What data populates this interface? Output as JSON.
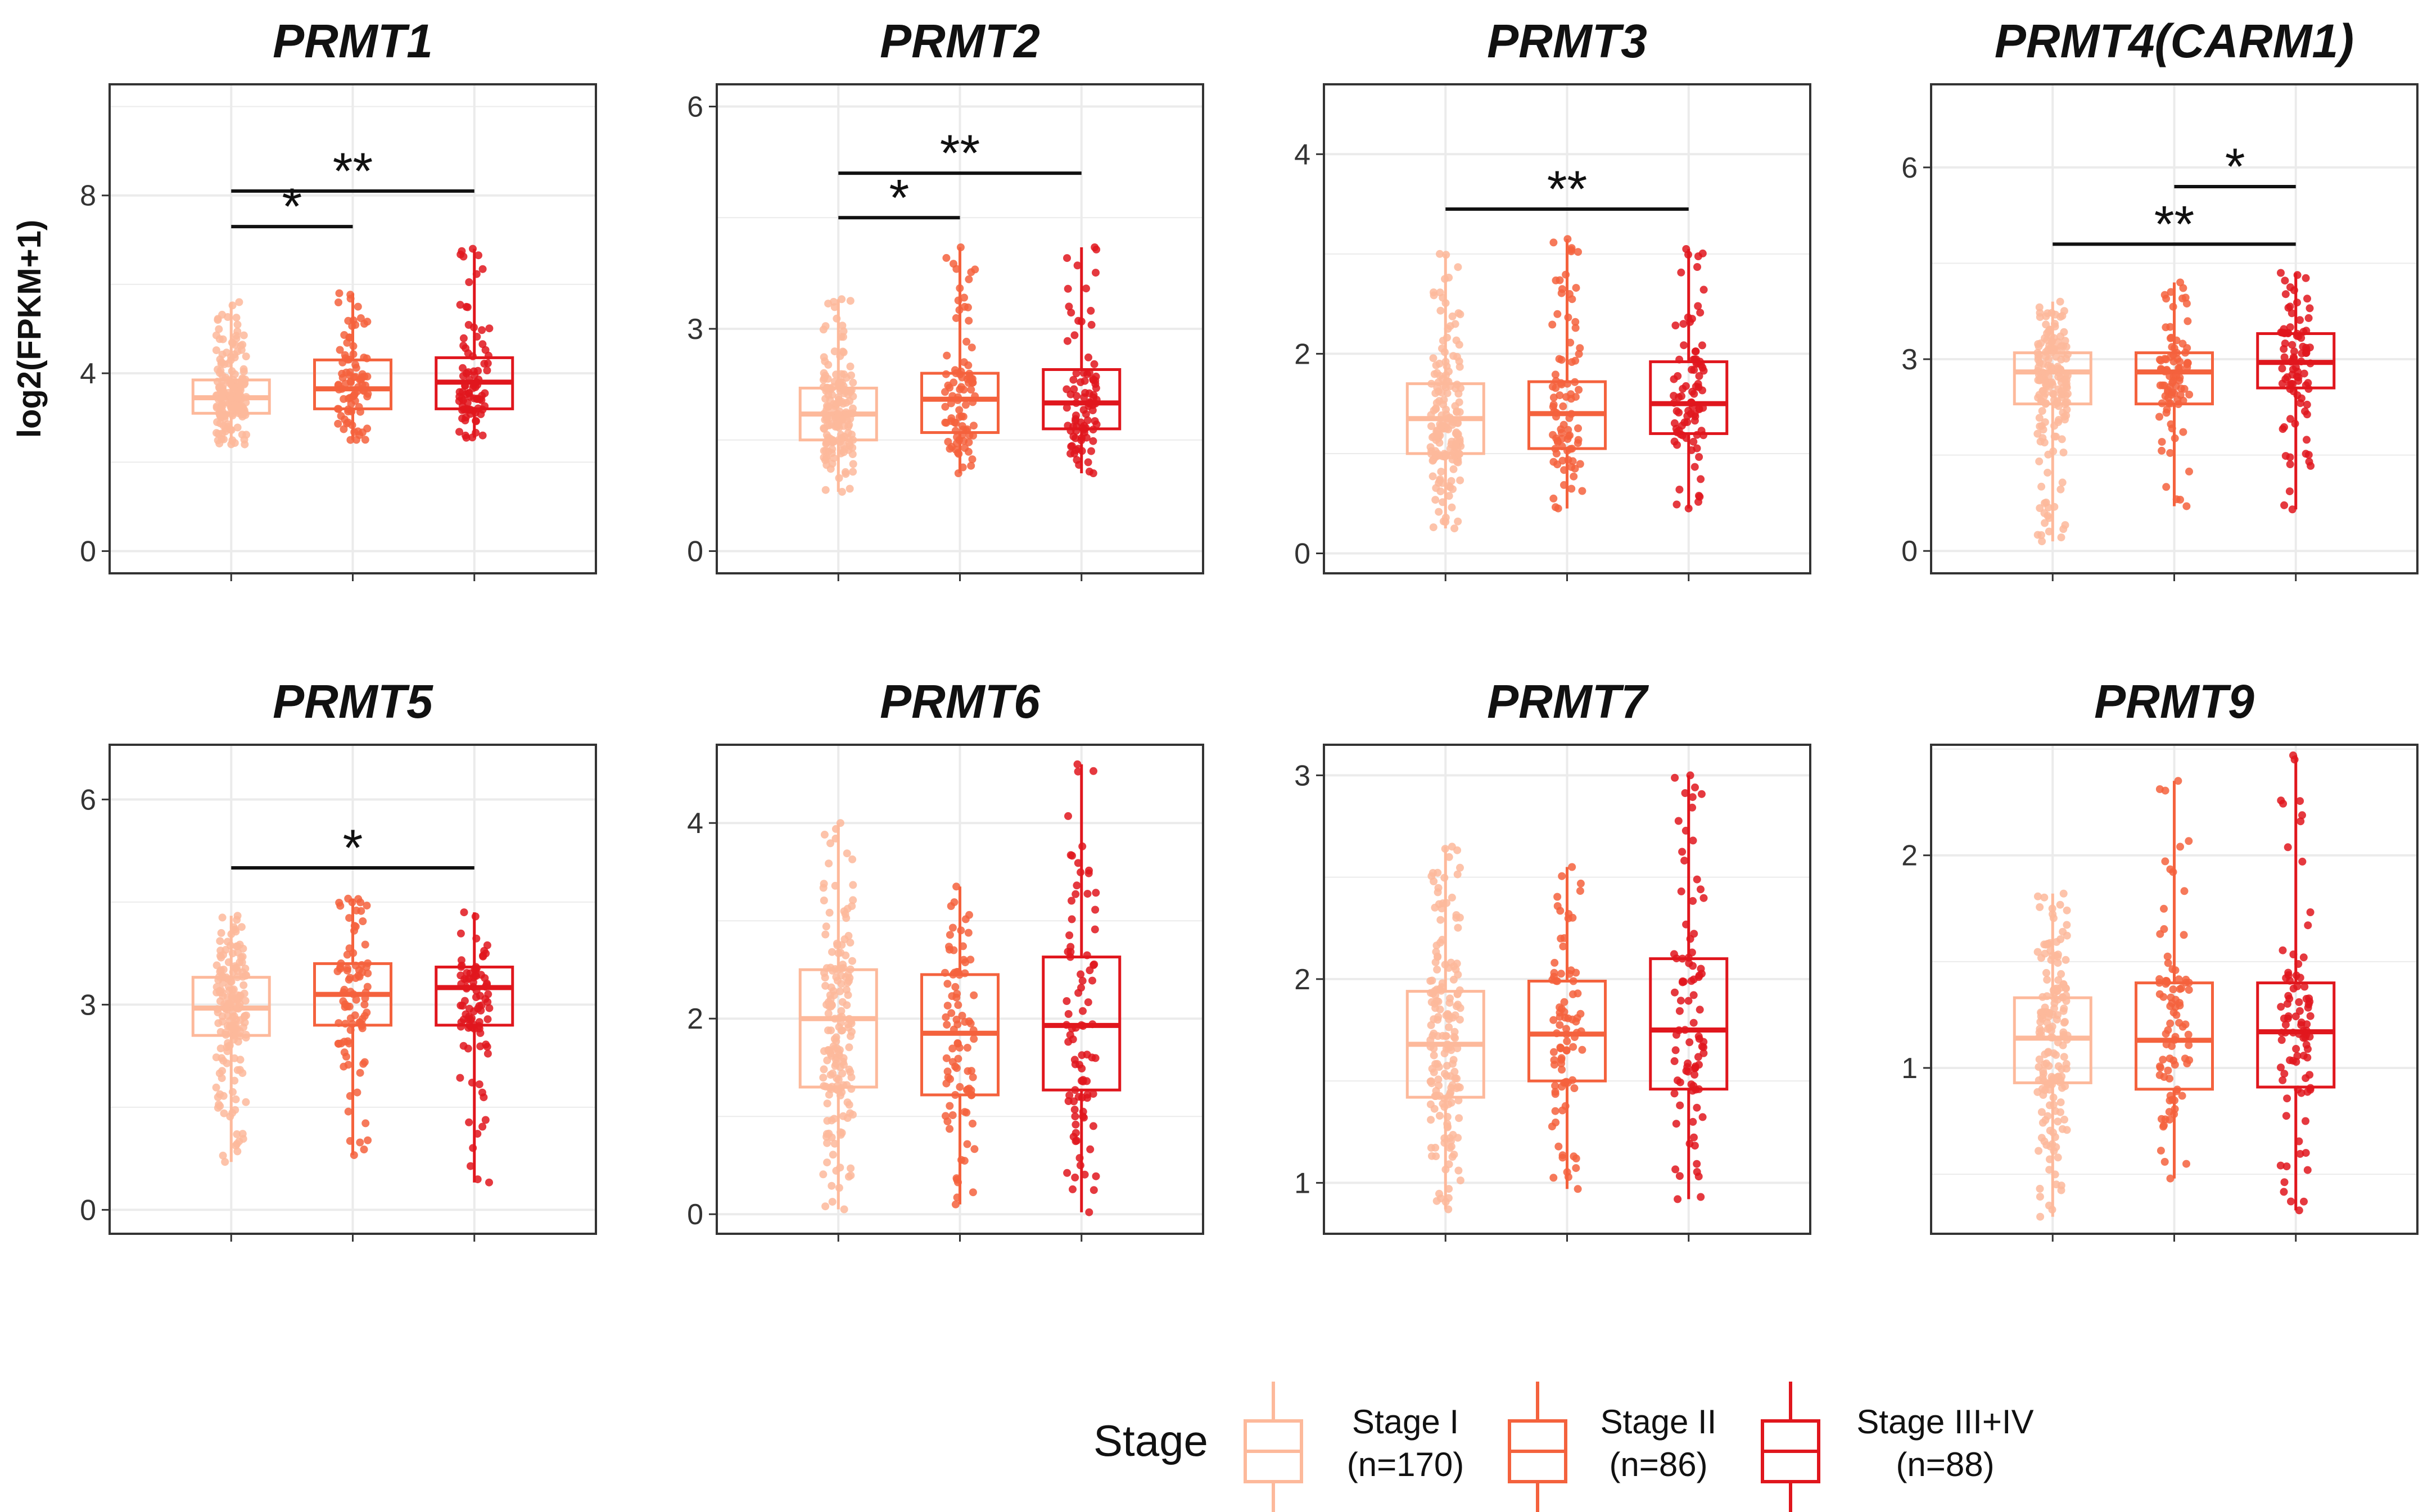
{
  "chart_data": {
    "type": "box",
    "y_axis_label": "log2(FPKM+1)",
    "groups": [
      {
        "key": "I",
        "label": "Stage I",
        "n_label": "(n=170)",
        "n": 170,
        "color": "#FDB99B"
      },
      {
        "key": "II",
        "label": "Stage II",
        "n_label": "(n=86)",
        "n": 86,
        "color": "#F4623D"
      },
      {
        "key": "III+IV",
        "label": "Stage III+IV",
        "n_label": "(n=88)",
        "n": 88,
        "color": "#E0161D"
      }
    ],
    "legend": {
      "title": "Stage",
      "position": "bottom"
    },
    "grid": true,
    "panels": [
      {
        "title": "PRMT1",
        "ylim": [
          -0.5,
          10.5
        ],
        "yticks": [
          0,
          4,
          8
        ],
        "boxes": [
          {
            "q1": 3.1,
            "median": 3.45,
            "q3": 3.85,
            "min": 2.4,
            "max": 5.6
          },
          {
            "q1": 3.2,
            "median": 3.65,
            "q3": 4.3,
            "min": 2.5,
            "max": 5.8
          },
          {
            "q1": 3.2,
            "median": 3.8,
            "q3": 4.35,
            "min": 2.55,
            "max": 6.8
          }
        ],
        "significance": [
          {
            "from": 0,
            "to": 1,
            "y": 7.3,
            "label": "*"
          },
          {
            "from": 0,
            "to": 2,
            "y": 8.1,
            "label": "**"
          }
        ]
      },
      {
        "title": "PRMT2",
        "ylim": [
          -0.3,
          6.3
        ],
        "yticks": [
          0,
          3,
          6
        ],
        "boxes": [
          {
            "q1": 1.5,
            "median": 1.85,
            "q3": 2.2,
            "min": 0.8,
            "max": 3.4
          },
          {
            "q1": 1.6,
            "median": 2.05,
            "q3": 2.4,
            "min": 1.05,
            "max": 4.1
          },
          {
            "q1": 1.65,
            "median": 2.0,
            "q3": 2.45,
            "min": 1.05,
            "max": 4.1
          }
        ],
        "significance": [
          {
            "from": 0,
            "to": 1,
            "y": 4.5,
            "label": "*"
          },
          {
            "from": 0,
            "to": 2,
            "y": 5.1,
            "label": "**"
          }
        ]
      },
      {
        "title": "PRMT3",
        "ylim": [
          -0.2,
          4.7
        ],
        "yticks": [
          0,
          2,
          4
        ],
        "boxes": [
          {
            "q1": 1.0,
            "median": 1.35,
            "q3": 1.7,
            "min": 0.25,
            "max": 3.0
          },
          {
            "q1": 1.05,
            "median": 1.4,
            "q3": 1.72,
            "min": 0.45,
            "max": 3.15
          },
          {
            "q1": 1.2,
            "median": 1.5,
            "q3": 1.92,
            "min": 0.45,
            "max": 3.05
          }
        ],
        "significance": [
          {
            "from": 0,
            "to": 2,
            "y": 3.45,
            "label": "**"
          }
        ]
      },
      {
        "title": "PRMT4(CARM1)",
        "ylim": [
          -0.35,
          7.3
        ],
        "yticks": [
          0,
          3,
          6
        ],
        "boxes": [
          {
            "q1": 2.3,
            "median": 2.8,
            "q3": 3.1,
            "min": 0.15,
            "max": 3.9
          },
          {
            "q1": 2.3,
            "median": 2.8,
            "q3": 3.1,
            "min": 0.7,
            "max": 4.2
          },
          {
            "q1": 2.55,
            "median": 2.95,
            "q3": 3.4,
            "min": 0.65,
            "max": 4.35
          }
        ],
        "significance": [
          {
            "from": 0,
            "to": 2,
            "y": 4.8,
            "label": "**"
          },
          {
            "from": 1,
            "to": 2,
            "y": 5.7,
            "label": "*"
          }
        ]
      },
      {
        "title": "PRMT5",
        "ylim": [
          -0.35,
          6.8
        ],
        "yticks": [
          0,
          3,
          6
        ],
        "boxes": [
          {
            "q1": 2.55,
            "median": 2.95,
            "q3": 3.4,
            "min": 0.7,
            "max": 4.3
          },
          {
            "q1": 2.7,
            "median": 3.15,
            "q3": 3.6,
            "min": 0.8,
            "max": 4.55
          },
          {
            "q1": 2.7,
            "median": 3.25,
            "q3": 3.55,
            "min": 0.4,
            "max": 4.35
          }
        ],
        "significance": [
          {
            "from": 0,
            "to": 2,
            "y": 5.0,
            "label": "*"
          }
        ]
      },
      {
        "title": "PRMT6",
        "ylim": [
          -0.2,
          4.8
        ],
        "yticks": [
          0,
          2,
          4
        ],
        "boxes": [
          {
            "q1": 1.3,
            "median": 2.0,
            "q3": 2.5,
            "min": 0.05,
            "max": 4.0
          },
          {
            "q1": 1.22,
            "median": 1.85,
            "q3": 2.45,
            "min": 0.1,
            "max": 3.35
          },
          {
            "q1": 1.27,
            "median": 1.93,
            "q3": 2.63,
            "min": 0.02,
            "max": 4.6
          }
        ],
        "significance": []
      },
      {
        "title": "PRMT7",
        "ylim": [
          0.75,
          3.15
        ],
        "yticks": [
          1,
          2,
          3
        ],
        "boxes": [
          {
            "q1": 1.42,
            "median": 1.68,
            "q3": 1.94,
            "min": 0.87,
            "max": 2.65
          },
          {
            "q1": 1.5,
            "median": 1.73,
            "q3": 1.99,
            "min": 0.97,
            "max": 2.55
          },
          {
            "q1": 1.46,
            "median": 1.75,
            "q3": 2.1,
            "min": 0.92,
            "max": 3.0
          }
        ],
        "significance": []
      },
      {
        "title": "PRMT9",
        "ylim": [
          0.22,
          2.52
        ],
        "yticks": [
          1,
          2
        ],
        "boxes": [
          {
            "q1": 0.93,
            "median": 1.14,
            "q3": 1.33,
            "min": 0.3,
            "max": 1.82
          },
          {
            "q1": 0.9,
            "median": 1.13,
            "q3": 1.4,
            "min": 0.48,
            "max": 2.35
          },
          {
            "q1": 0.91,
            "median": 1.17,
            "q3": 1.4,
            "min": 0.33,
            "max": 2.47
          }
        ],
        "significance": []
      }
    ]
  }
}
